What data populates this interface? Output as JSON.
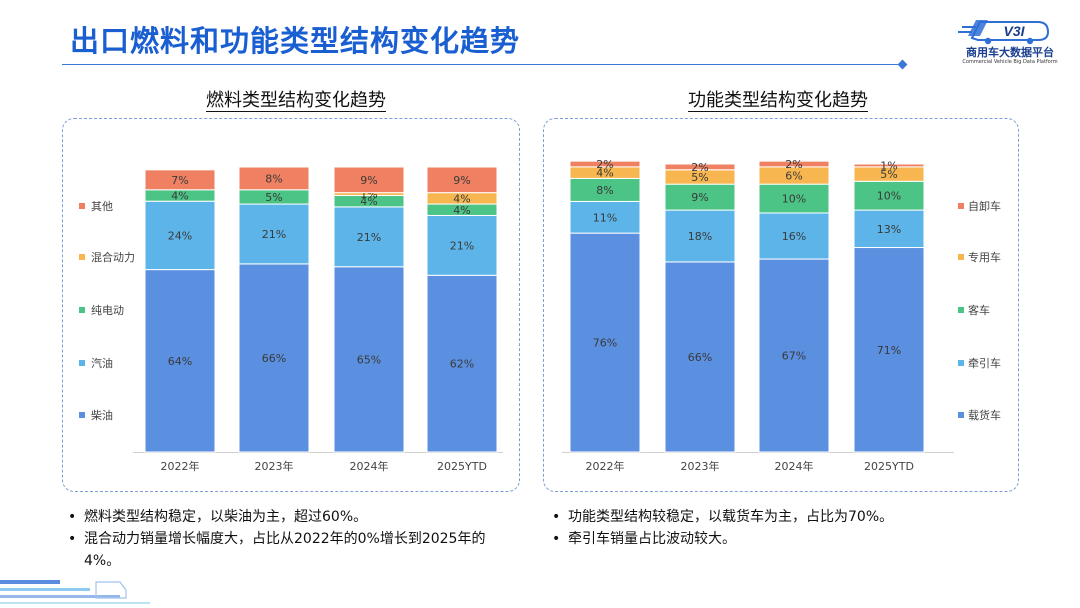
{
  "header": {
    "title": "出口燃料和功能类型结构变化趋势",
    "logo_text": "商用车大数据平台",
    "logo_subtext": "Commercial Vehicle Big Data Platform",
    "logo_mark": "V3I"
  },
  "colors": {
    "accent": "#1a5fd1",
    "series_blue": "#5b8fe0",
    "series_light_blue": "#5db4e8",
    "series_green": "#4cc486",
    "series_orange": "#f7b64f",
    "series_red": "#ef8062"
  },
  "notes_left": [
    "燃料类型结构稳定，以柴油为主，超过60%。",
    "混合动力销量增长幅度大，占比从2022年的0%增长到2025年的4%。"
  ],
  "notes_right": [
    "功能类型结构较稳定，以载货车为主，占比为70%。",
    "牵引车销量占比波动较大。"
  ],
  "chart_data": [
    {
      "type": "bar",
      "stacked": true,
      "title": "燃料类型结构变化趋势",
      "categories": [
        "2022年",
        "2023年",
        "2024年",
        "2025YTD"
      ],
      "unit": "%",
      "ylim": [
        0,
        100
      ],
      "legend_position": "left",
      "series": [
        {
          "name": "柴油",
          "color": "#5b8fe0",
          "values": [
            64,
            66,
            65,
            62
          ],
          "labels": [
            "64%",
            "66%",
            "65%",
            "62%"
          ]
        },
        {
          "name": "汽油",
          "color": "#5db4e8",
          "values": [
            24,
            21,
            21,
            21
          ],
          "labels": [
            "24%",
            "21%",
            "21%",
            "21%"
          ]
        },
        {
          "name": "纯电动",
          "color": "#4cc486",
          "values": [
            4,
            5,
            4,
            4
          ],
          "labels": [
            "4%",
            "5%",
            "4%",
            "4%"
          ]
        },
        {
          "name": "混合动力",
          "color": "#f7b64f",
          "values": [
            0,
            0,
            1,
            4
          ],
          "labels": [
            "",
            "",
            "1%",
            "4%"
          ]
        },
        {
          "name": "其他",
          "color": "#ef8062",
          "values": [
            7,
            8,
            9,
            9
          ],
          "labels": [
            "7%",
            "8%",
            "9%",
            "9%"
          ]
        }
      ]
    },
    {
      "type": "bar",
      "stacked": true,
      "title": "功能类型结构变化趋势",
      "categories": [
        "2022年",
        "2023年",
        "2024年",
        "2025YTD"
      ],
      "unit": "%",
      "ylim": [
        0,
        100
      ],
      "legend_position": "right",
      "series": [
        {
          "name": "载货车",
          "color": "#5b8fe0",
          "values": [
            76,
            66,
            67,
            71
          ],
          "labels": [
            "76%",
            "66%",
            "67%",
            "71%"
          ]
        },
        {
          "name": "牵引车",
          "color": "#5db4e8",
          "values": [
            11,
            18,
            16,
            13
          ],
          "labels": [
            "11%",
            "18%",
            "16%",
            "13%"
          ]
        },
        {
          "name": "客车",
          "color": "#4cc486",
          "values": [
            8,
            9,
            10,
            10
          ],
          "labels": [
            "8%",
            "9%",
            "10%",
            "10%"
          ]
        },
        {
          "name": "专用车",
          "color": "#f7b64f",
          "values": [
            4,
            5,
            6,
            5
          ],
          "labels": [
            "4%",
            "5%",
            "6%",
            "5%"
          ]
        },
        {
          "name": "自卸车",
          "color": "#ef8062",
          "values": [
            2,
            2,
            2,
            1
          ],
          "labels": [
            "2%",
            "2%",
            "2%",
            "1%"
          ]
        }
      ]
    }
  ]
}
